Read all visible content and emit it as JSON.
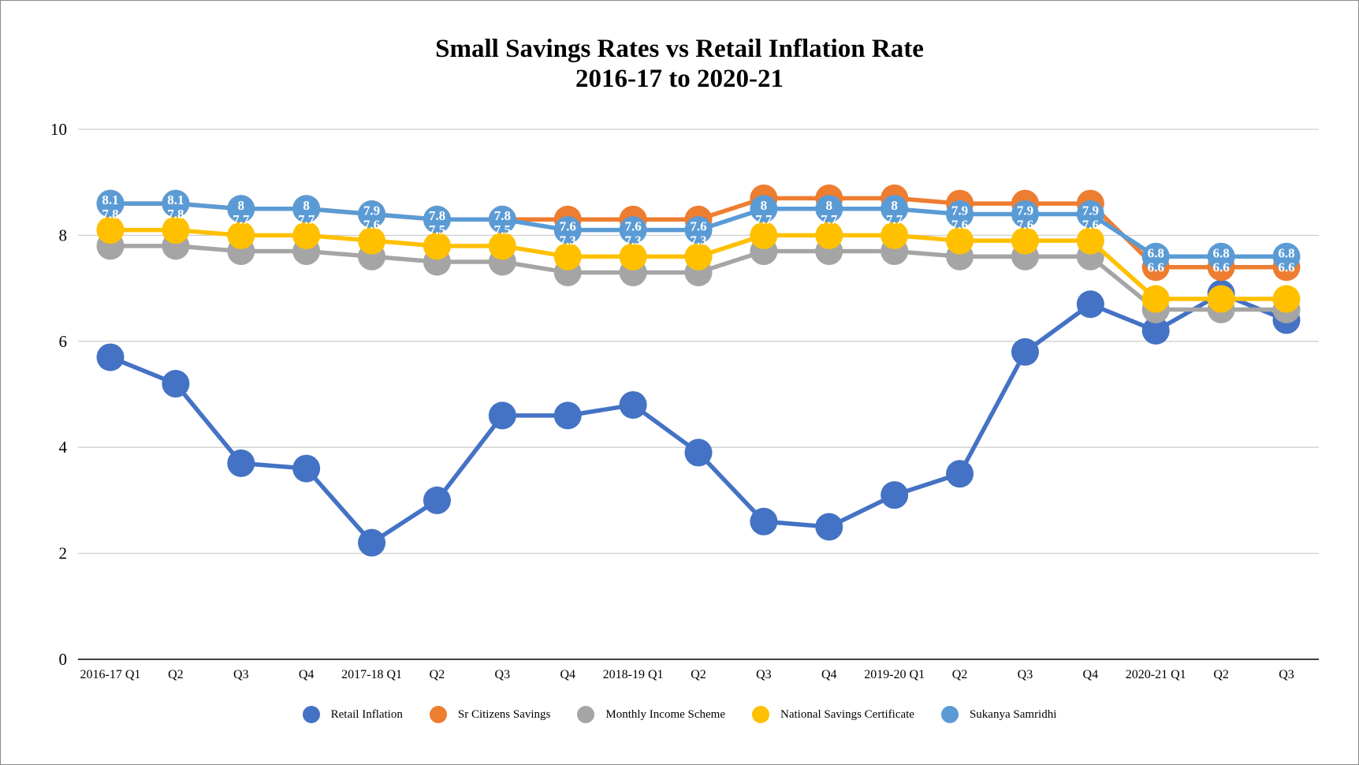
{
  "chart_data": {
    "type": "line",
    "title": "Small Savings Rates vs Retail Inflation Rate",
    "subtitle": "2016-17 to 2020-21",
    "xlabel": "",
    "ylabel": "",
    "ylim": [
      0,
      10
    ],
    "yticks": [
      "0",
      "2",
      "4",
      "6",
      "8",
      "10"
    ],
    "grid": true,
    "legend_position": "bottom",
    "categories": [
      "2016-17 Q1",
      "Q2",
      "Q3",
      "Q4",
      "2017-18 Q1",
      "Q2",
      "Q3",
      "Q4",
      "2018-19 Q1",
      "Q2",
      "Q3",
      "Q4",
      "2019-20 Q1",
      "Q2",
      "Q3",
      "Q4",
      "2020-21 Q1",
      "Q2",
      "Q3"
    ],
    "series": [
      {
        "name": "Retail Inflation",
        "color": "#4472C4",
        "values": [
          5.7,
          5.2,
          3.7,
          3.6,
          2.2,
          3.0,
          4.6,
          4.6,
          4.8,
          3.9,
          2.6,
          2.5,
          3.1,
          3.5,
          5.8,
          6.7,
          6.2,
          6.9,
          6.4
        ]
      },
      {
        "name": "Sr Citizens Savings",
        "color": "#ED7D31",
        "values": [
          8.6,
          8.6,
          8.5,
          8.5,
          8.4,
          8.3,
          8.3,
          8.3,
          8.3,
          8.3,
          8.7,
          8.7,
          8.7,
          8.6,
          8.6,
          8.6,
          7.4,
          7.4,
          7.4
        ]
      },
      {
        "name": "Monthly Income Scheme",
        "color": "#A5A5A5",
        "values": [
          7.8,
          7.8,
          7.7,
          7.7,
          7.6,
          7.5,
          7.5,
          7.3,
          7.3,
          7.3,
          7.7,
          7.7,
          7.7,
          7.6,
          7.6,
          7.6,
          6.6,
          6.6,
          6.6
        ]
      },
      {
        "name": "National Savings Certificate",
        "color": "#FFC000",
        "values": [
          8.1,
          8.1,
          8.0,
          8.0,
          7.9,
          7.8,
          7.8,
          7.6,
          7.6,
          7.6,
          8.0,
          8.0,
          8.0,
          7.9,
          7.9,
          7.9,
          6.8,
          6.8,
          6.8
        ]
      },
      {
        "name": "Sukanya Samridhi",
        "color": "#5B9BD5",
        "values": [
          8.6,
          8.6,
          8.5,
          8.5,
          8.4,
          8.3,
          8.3,
          8.1,
          8.1,
          8.1,
          8.5,
          8.5,
          8.5,
          8.4,
          8.4,
          8.4,
          7.6,
          7.6,
          7.6
        ]
      }
    ]
  }
}
